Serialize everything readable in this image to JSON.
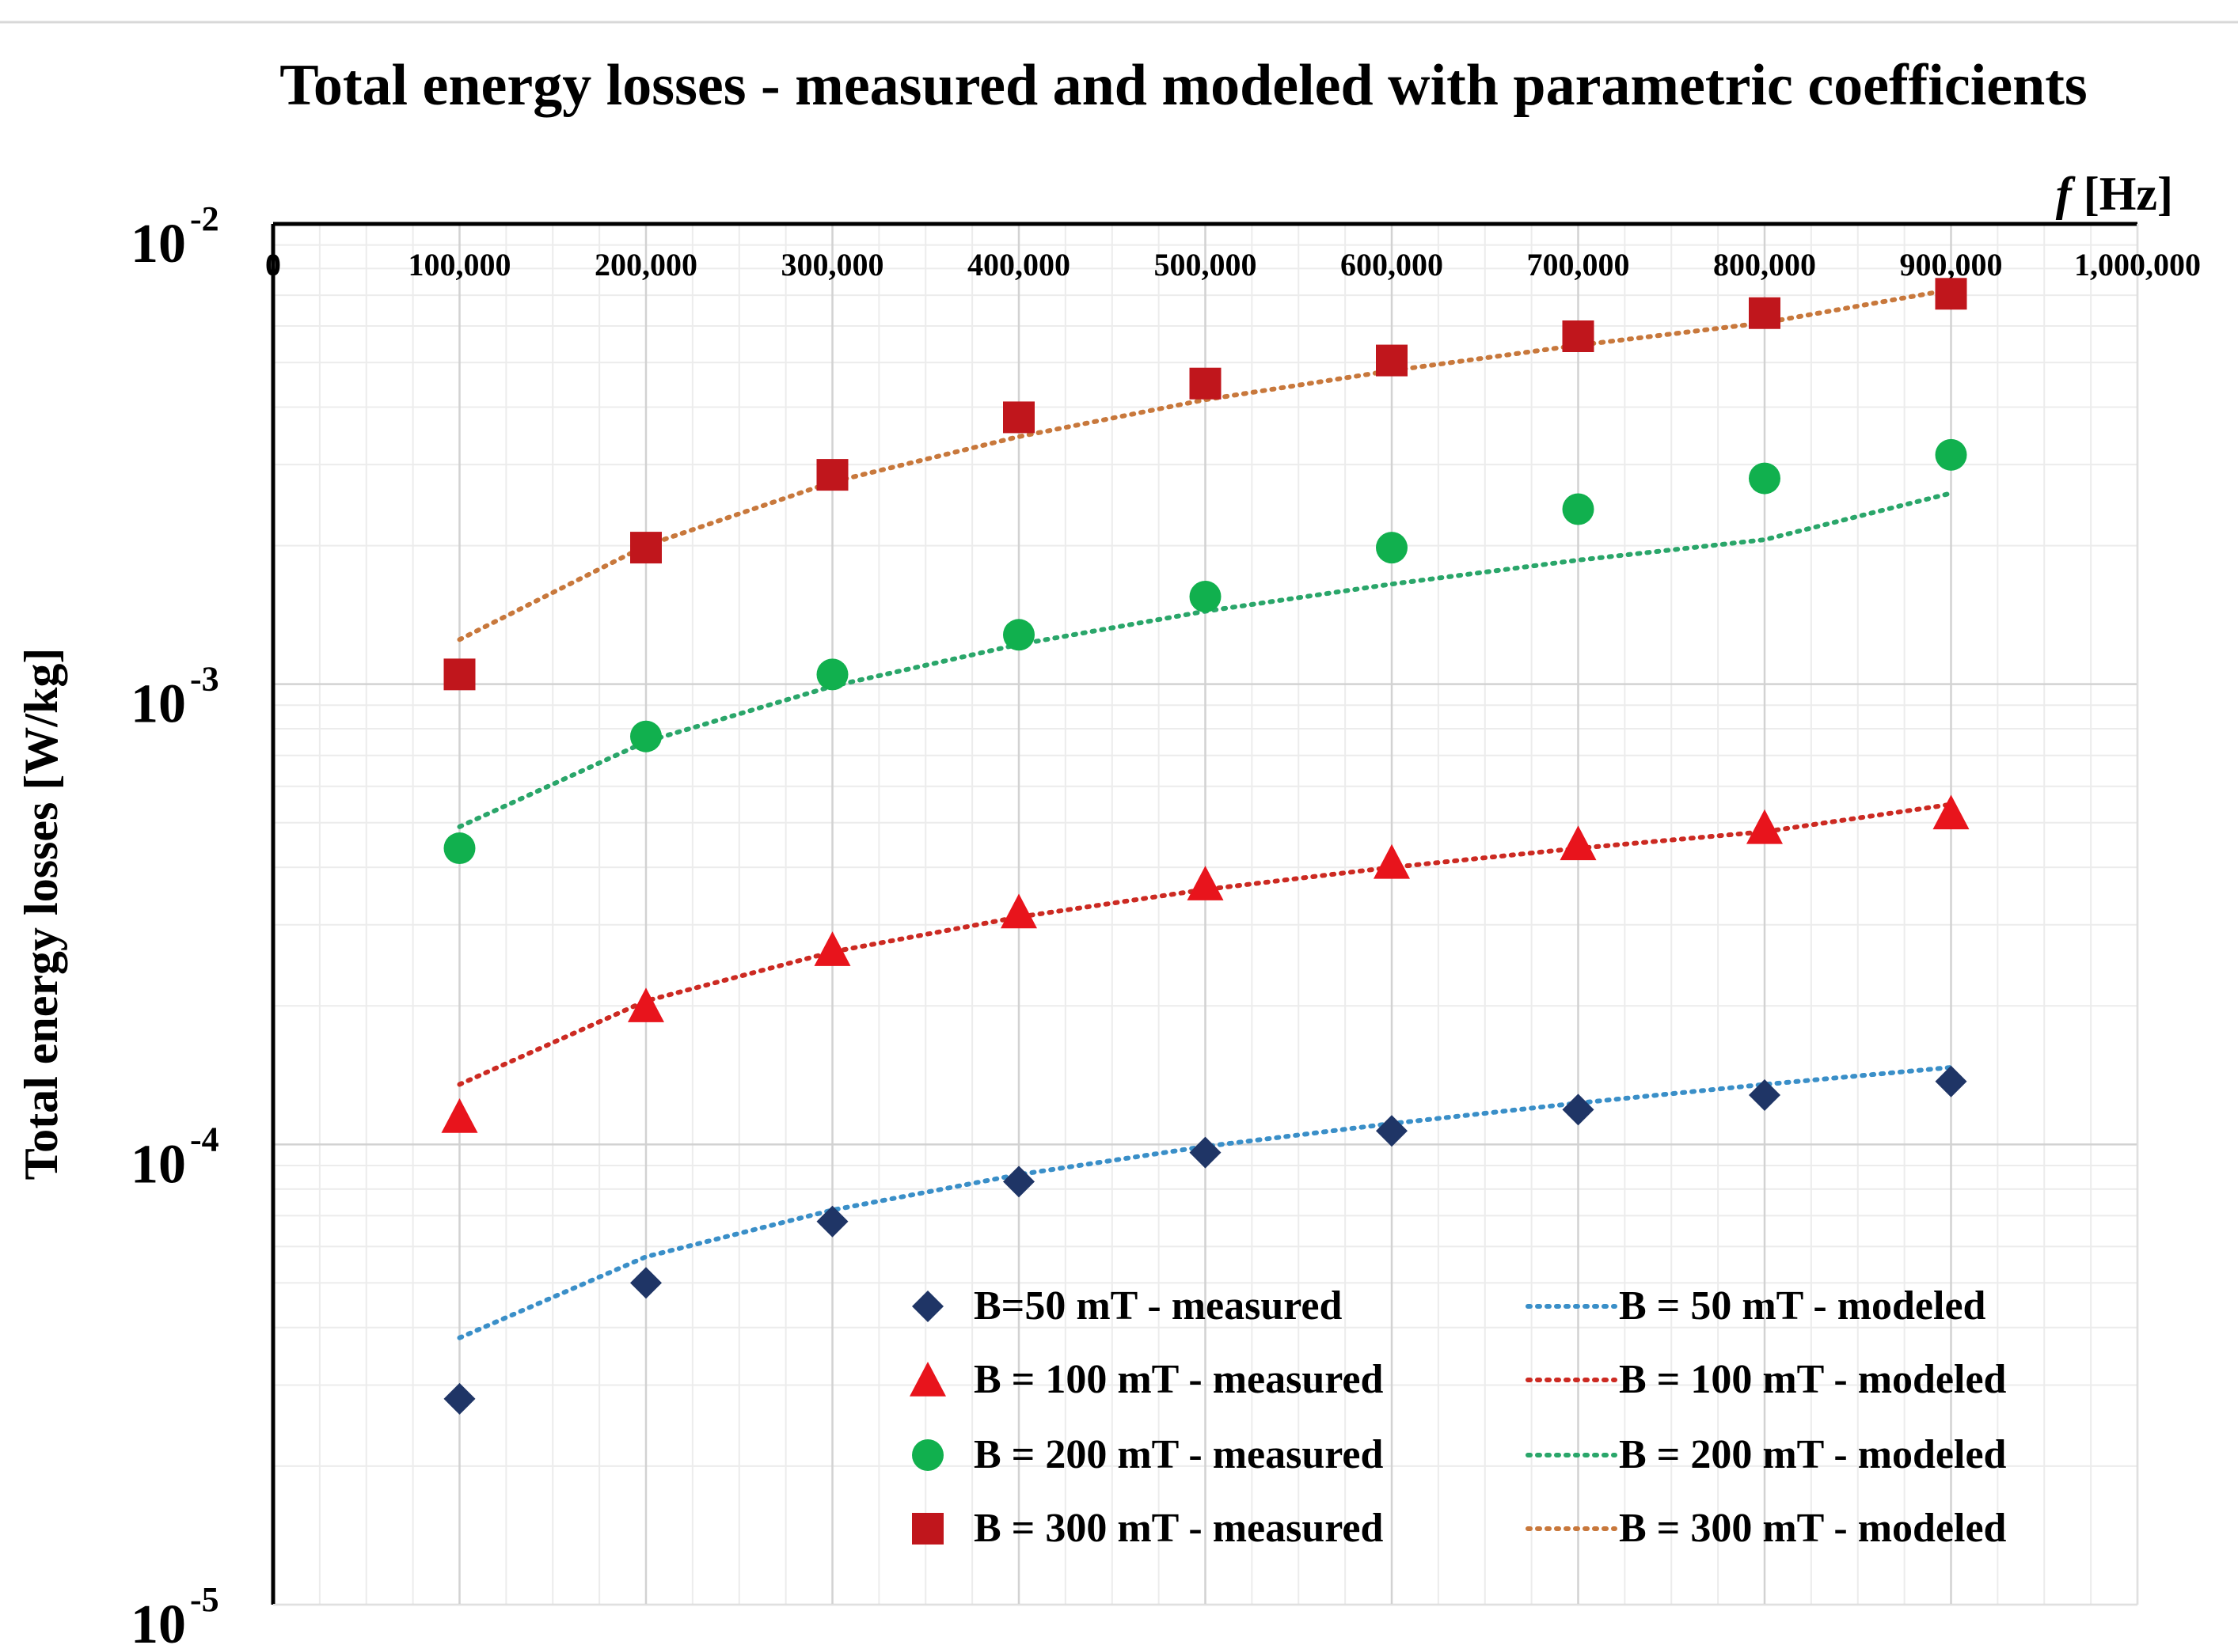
{
  "chart_data": {
    "type": "scatter",
    "title": "Total energy losses - measured and modeled with parametric coefficients",
    "xlabel_var": "f",
    "xlabel_unit": "[Hz]",
    "ylabel": "Total energy losses [W/kg]",
    "xlim": [
      0,
      1000000
    ],
    "ylim": [
      1e-05,
      0.01
    ],
    "yscale": "log",
    "x_ticks": [
      0,
      100000,
      200000,
      300000,
      400000,
      500000,
      600000,
      700000,
      800000,
      900000,
      1000000
    ],
    "x_tick_labels": [
      "0",
      "100,000",
      "200,000",
      "300,000",
      "400,000",
      "500,000",
      "600,000",
      "700,000",
      "800,000",
      "900,000",
      "1,000,000"
    ],
    "y_ticks": [
      {
        "value": 0.01,
        "base": "10",
        "exp": "-2"
      },
      {
        "value": 0.001,
        "base": "10",
        "exp": "-3"
      },
      {
        "value": 0.0001,
        "base": "10",
        "exp": "-4"
      },
      {
        "value": 1e-05,
        "base": "10",
        "exp": "-5"
      }
    ],
    "x_axis_position": "top",
    "grid": true,
    "legend_position": "bottom-right",
    "series": [
      {
        "name": "B=50 mT - measured",
        "kind": "marker",
        "marker": "diamond",
        "color": "#1f3566",
        "x": [
          100000,
          200000,
          300000,
          400000,
          500000,
          600000,
          700000,
          800000,
          900000
        ],
        "y": [
          2.8e-05,
          5e-05,
          6.8e-05,
          8.3e-05,
          9.6e-05,
          0.000107,
          0.000119,
          0.000128,
          0.000137
        ]
      },
      {
        "name": "B = 50 mT - modeled",
        "kind": "line",
        "color": "#3a8fc8",
        "x": [
          100000,
          200000,
          300000,
          400000,
          500000,
          600000,
          700000,
          800000,
          900000
        ],
        "y": [
          3.8e-05,
          5.7e-05,
          7.2e-05,
          8.6e-05,
          9.9e-05,
          0.000111,
          0.000123,
          0.000135,
          0.000147
        ]
      },
      {
        "name": "B = 100 mT - measured",
        "kind": "marker",
        "marker": "triangle",
        "color": "#e8141c",
        "x": [
          100000,
          200000,
          300000,
          400000,
          500000,
          600000,
          700000,
          800000,
          900000
        ],
        "y": [
          0.000115,
          0.0002,
          0.000265,
          0.00032,
          0.000368,
          0.00041,
          0.00045,
          0.000488,
          0.000525
        ]
      },
      {
        "name": "B = 100 mT - modeled",
        "kind": "line",
        "color": "#cc2a22",
        "x": [
          100000,
          200000,
          300000,
          400000,
          500000,
          600000,
          700000,
          800000,
          900000
        ],
        "y": [
          0.000135,
          0.000205,
          0.000262,
          0.000312,
          0.000358,
          0.0004,
          0.00044,
          0.000478,
          0.000548
        ]
      },
      {
        "name": "B = 200 mT - measured",
        "kind": "marker",
        "marker": "circle",
        "color": "#11b04e",
        "x": [
          100000,
          200000,
          300000,
          400000,
          500000,
          600000,
          700000,
          800000,
          900000
        ],
        "y": [
          0.00044,
          0.00077,
          0.00105,
          0.00128,
          0.00155,
          0.00198,
          0.0024,
          0.0028,
          0.00315
        ]
      },
      {
        "name": "B = 200 mT - modeled",
        "kind": "line",
        "color": "#2aa66a",
        "x": [
          100000,
          200000,
          300000,
          400000,
          500000,
          600000,
          700000,
          800000,
          900000
        ],
        "y": [
          0.00049,
          0.00075,
          0.00099,
          0.00122,
          0.00144,
          0.00165,
          0.00186,
          0.00206,
          0.0026
        ]
      },
      {
        "name": "B = 300 mT - measured",
        "kind": "marker",
        "marker": "square",
        "color": "#c0161c",
        "x": [
          100000,
          200000,
          300000,
          400000,
          500000,
          600000,
          700000,
          800000,
          900000
        ],
        "y": [
          0.00105,
          0.00198,
          0.00285,
          0.0038,
          0.0045,
          0.00505,
          0.0057,
          0.0064,
          0.00705
        ]
      },
      {
        "name": "B = 300 mT - modeled",
        "kind": "line",
        "color": "#c8783c",
        "x": [
          100000,
          200000,
          300000,
          400000,
          500000,
          600000,
          700000,
          800000,
          900000
        ],
        "y": [
          0.00125,
          0.002,
          0.00275,
          0.00345,
          0.00415,
          0.0048,
          0.00545,
          0.0061,
          0.0072
        ]
      }
    ]
  }
}
